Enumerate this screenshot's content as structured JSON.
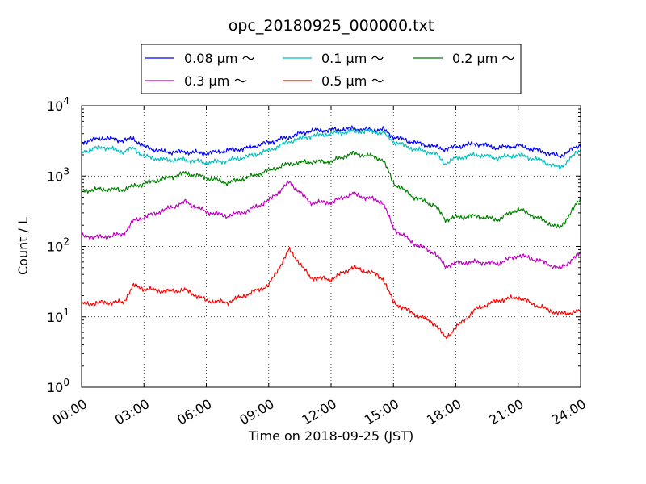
{
  "chart_data": {
    "type": "line",
    "title": "opc_20180925_000000.txt",
    "xlabel": "Time on 2018-09-25 (JST)",
    "ylabel": "Count / L",
    "yscale": "log",
    "ylim": [
      1,
      10000
    ],
    "xlim_hours": [
      0,
      24
    ],
    "grid": true,
    "legend_placement": "top",
    "x_tick_labels": [
      "00:00",
      "03:00",
      "06:00",
      "09:00",
      "12:00",
      "15:00",
      "18:00",
      "21:00",
      "24:00"
    ],
    "y_tick_labels": [
      {
        "base": "10",
        "exp": "0"
      },
      {
        "base": "10",
        "exp": "1"
      },
      {
        "base": "10",
        "exp": "2"
      },
      {
        "base": "10",
        "exp": "3"
      },
      {
        "base": "10",
        "exp": "4"
      }
    ],
    "x_hours": [
      0,
      1,
      2,
      2.5,
      3,
      4,
      5,
      6,
      7,
      8,
      9,
      10,
      11,
      12,
      13,
      14,
      14.5,
      15,
      16,
      17,
      17.5,
      18,
      19,
      20,
      21,
      22,
      23,
      24
    ],
    "series": [
      {
        "name": "0.08 μm ～",
        "color": "#0000ff",
        "values": [
          3000,
          3500,
          3200,
          3400,
          2600,
          2200,
          2200,
          2100,
          2300,
          2500,
          3000,
          3600,
          4400,
          4500,
          4700,
          4500,
          4600,
          3600,
          3000,
          2600,
          2400,
          2600,
          2900,
          2500,
          2700,
          2300,
          1900,
          2800
        ]
      },
      {
        "name": "0.1 μm ～",
        "color": "#00bfbf",
        "values": [
          2200,
          2600,
          2200,
          2500,
          1900,
          1700,
          1700,
          1550,
          1650,
          1900,
          2300,
          3100,
          3700,
          4000,
          4300,
          4300,
          4100,
          3100,
          2400,
          2100,
          1500,
          1800,
          2000,
          1800,
          2000,
          1700,
          1300,
          2400
        ]
      },
      {
        "name": "0.2 μm ～",
        "color": "#008000",
        "values": [
          620,
          650,
          640,
          720,
          780,
          920,
          1100,
          950,
          800,
          950,
          1200,
          1500,
          1600,
          1600,
          2100,
          1900,
          1700,
          800,
          500,
          380,
          240,
          260,
          270,
          240,
          340,
          250,
          180,
          480
        ]
      },
      {
        "name": "0.3 μm ～",
        "color": "#bf00bf",
        "values": [
          140,
          135,
          150,
          230,
          260,
          330,
          430,
          310,
          270,
          320,
          450,
          820,
          420,
          420,
          560,
          470,
          420,
          180,
          110,
          80,
          52,
          58,
          60,
          57,
          75,
          63,
          48,
          80
        ]
      },
      {
        "name": "0.5 μm ～",
        "color": "#ff0000",
        "values": [
          15,
          16,
          16,
          28,
          25,
          23,
          24,
          17,
          16,
          21,
          28,
          90,
          36,
          34,
          50,
          42,
          35,
          16,
          11,
          8,
          5,
          7,
          13,
          17,
          19,
          14,
          11,
          12
        ]
      }
    ]
  }
}
